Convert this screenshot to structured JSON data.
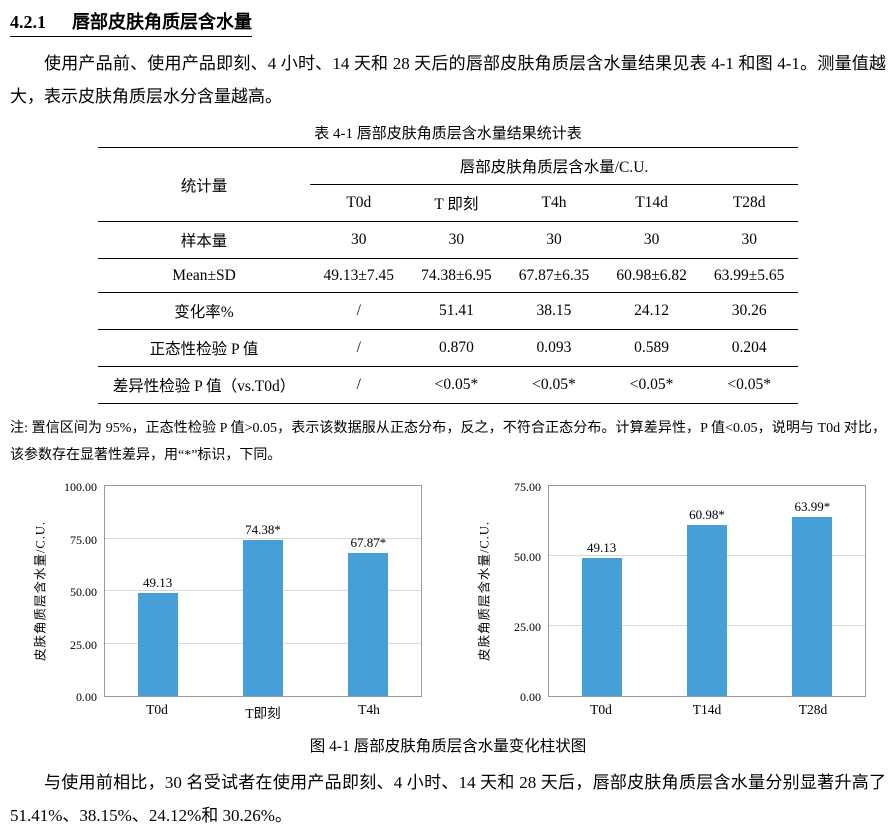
{
  "page": {
    "heading": {
      "number": "4.2.1",
      "title": "唇部皮肤角质层含水量"
    },
    "intro": "使用产品前、使用产品即刻、4 小时、14 天和 28 天后的唇部皮肤角质层含水量结果见表 4-1 和图 4-1。测量值越大，表示皮肤角质层水分含量越高。",
    "note": "注: 置信区间为 95%，正态性检验 P 值>0.05，表示该数据服从正态分布，反之，不符合正态分布。计算差异性，P 值<0.05，说明与 T0d 对比，该参数存在显著性差异，用“*”标识，下同。",
    "figure_caption": "图 4-1 唇部皮肤角质层含水量变化柱状图",
    "conclusion": "与使用前相比，30 名受试者在使用产品即刻、4 小时、14 天和 28 天后，唇部皮肤角质层含水量分别显著升高了 51.41%、38.15%、24.12%和 30.26%。"
  },
  "table": {
    "caption": "表 4-1 唇部皮肤角质层含水量结果统计表",
    "stat_col_header": "统计量",
    "group_header": "唇部皮肤角质层含水量/C.U.",
    "time_headers": [
      "T0d",
      "T 即刻",
      "T4h",
      "T14d",
      "T28d"
    ],
    "rows": [
      {
        "label": "样本量",
        "values": [
          "30",
          "30",
          "30",
          "30",
          "30"
        ]
      },
      {
        "label": "Mean±SD",
        "values": [
          "49.13±7.45",
          "74.38±6.95",
          "67.87±6.35",
          "60.98±6.82",
          "63.99±5.65"
        ]
      },
      {
        "label": "变化率%",
        "values": [
          "/",
          "51.41",
          "38.15",
          "24.12",
          "30.26"
        ]
      },
      {
        "label": "正态性检验 P 值",
        "values": [
          "/",
          "0.870",
          "0.093",
          "0.589",
          "0.204"
        ]
      },
      {
        "label": "差异性检验 P 值（vs.T0d）",
        "values": [
          "/",
          "<0.05*",
          "<0.05*",
          "<0.05*",
          "<0.05*"
        ]
      }
    ]
  },
  "chart_data": [
    {
      "type": "bar",
      "title": "",
      "categories": [
        "T0d",
        "T即刻",
        "T4h"
      ],
      "values": [
        49.13,
        74.38,
        67.87
      ],
      "bar_labels": [
        "49.13",
        "74.38*",
        "67.87*"
      ],
      "xlabel": "",
      "ylabel": "皮肤角质层含水量/C.U.",
      "ylim": [
        0,
        100
      ],
      "yticks": [
        0,
        25,
        50,
        75,
        100
      ],
      "ytick_labels": [
        "0.00",
        "25.00",
        "50.00",
        "75.00",
        "100.00"
      ],
      "bar_color": "#46a0d7",
      "grid": true,
      "legend": "none"
    },
    {
      "type": "bar",
      "title": "",
      "categories": [
        "T0d",
        "T14d",
        "T28d"
      ],
      "values": [
        49.13,
        60.98,
        63.99
      ],
      "bar_labels": [
        "49.13",
        "60.98*",
        "63.99*"
      ],
      "xlabel": "",
      "ylabel": "皮肤角质层含水量/C.U.",
      "ylim": [
        0,
        75
      ],
      "yticks": [
        0,
        25,
        50,
        75
      ],
      "ytick_labels": [
        "0.00",
        "25.00",
        "50.00",
        "75.00"
      ],
      "bar_color": "#46a0d7",
      "grid": true,
      "legend": "none"
    }
  ]
}
